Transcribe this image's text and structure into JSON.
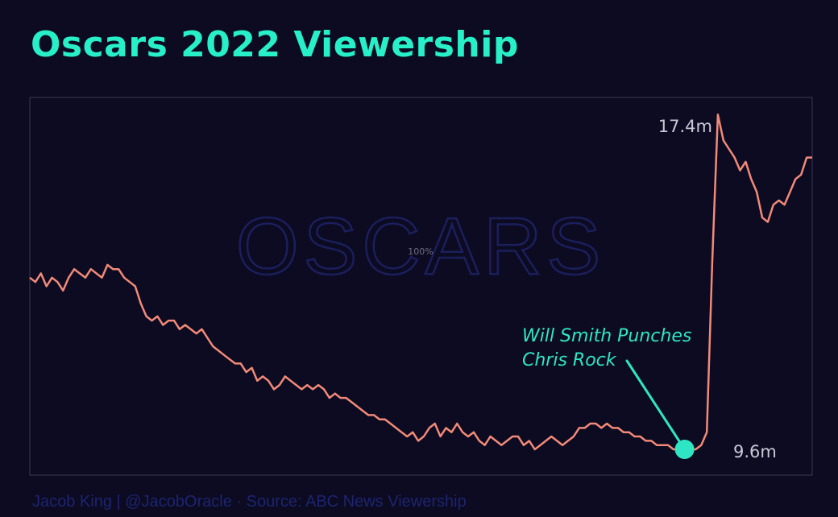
{
  "title": "Oscars 2022 Viewership",
  "footer": "Jacob King | @JacobOracle · Source: ABC News Viewership",
  "watermark": {
    "brand": "OSCARS",
    "zoom": "100%"
  },
  "colors": {
    "background": "#0c0b22",
    "title": "#27f0c8",
    "line": "#f28a78",
    "annotation": "#2ee6c4",
    "label": "#c9c9d4",
    "watermark": "#1b1f5c"
  },
  "chart_data": {
    "type": "line",
    "title": "Oscars 2022 Viewership",
    "xlabel": "",
    "ylabel": "",
    "ylim": [
      9.0,
      17.8
    ],
    "grid": false,
    "series": [
      {
        "values": [
          13.6,
          13.5,
          13.7,
          13.4,
          13.6,
          13.5,
          13.3,
          13.6,
          13.8,
          13.7,
          13.6,
          13.8,
          13.7,
          13.6,
          13.9,
          13.8,
          13.8,
          13.6,
          13.5,
          13.4,
          13.0,
          12.7,
          12.6,
          12.7,
          12.5,
          12.6,
          12.6,
          12.4,
          12.5,
          12.4,
          12.3,
          12.4,
          12.2,
          12.0,
          11.9,
          11.8,
          11.7,
          11.6,
          11.6,
          11.4,
          11.5,
          11.2,
          11.3,
          11.2,
          11.0,
          11.1,
          11.3,
          11.2,
          11.1,
          11.0,
          11.1,
          11.0,
          11.1,
          11.0,
          10.8,
          10.9,
          10.8,
          10.8,
          10.7,
          10.6,
          10.5,
          10.4,
          10.4,
          10.3,
          10.3,
          10.2,
          10.1,
          10.0,
          9.9,
          10.0,
          9.8,
          9.9,
          10.1,
          10.2,
          9.9,
          10.1,
          10.0,
          10.2,
          10.0,
          9.9,
          10.0,
          9.8,
          9.7,
          9.9,
          9.8,
          9.7,
          9.8,
          9.9,
          9.9,
          9.7,
          9.8,
          9.6,
          9.7,
          9.8,
          9.9,
          9.8,
          9.7,
          9.8,
          9.9,
          10.1,
          10.1,
          10.2,
          10.2,
          10.1,
          10.2,
          10.1,
          10.1,
          10.0,
          10.0,
          9.9,
          9.9,
          9.8,
          9.8,
          9.7,
          9.7,
          9.7,
          9.6,
          9.6,
          9.6,
          9.6,
          9.6,
          9.7,
          10.0,
          14.0,
          17.4,
          16.8,
          16.6,
          16.4,
          16.1,
          16.3,
          15.9,
          15.6,
          15.0,
          14.9,
          15.3,
          15.4,
          15.3,
          15.6,
          15.9,
          16.0,
          16.4,
          16.4
        ]
      }
    ],
    "annotations": [
      {
        "text_line1": "Will Smith Punches",
        "text_line2": "Chris Rock",
        "at_index": 118,
        "value": 9.6
      }
    ],
    "value_labels": {
      "peak": "17.4m",
      "punch": "9.6m"
    }
  }
}
